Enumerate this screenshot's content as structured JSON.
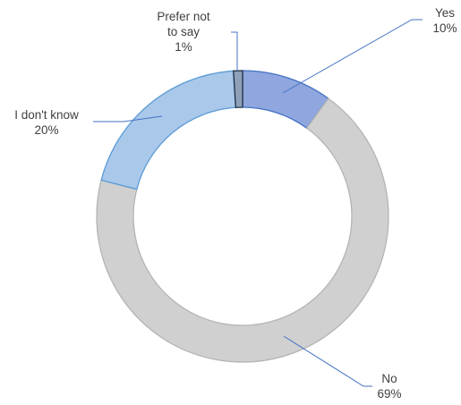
{
  "chart_data": {
    "type": "pie",
    "donut": true,
    "slices": [
      {
        "label": "Yes",
        "value": 10,
        "value_label": "10%",
        "color": "#8FA6DE",
        "stroke": "#4472C4"
      },
      {
        "label": "No",
        "value": 69,
        "value_label": "69%",
        "color": "#D0D0D0",
        "stroke": "#B4B4B4"
      },
      {
        "label": "I don't know",
        "value": 20,
        "value_label": "20%",
        "color": "#A9C8EA",
        "stroke": "#5B9BD5"
      },
      {
        "label": "Prefer not to say",
        "value": 1,
        "value_label": "1%",
        "color": "#8FA1B8",
        "stroke": "#1F2F46"
      }
    ],
    "labels": [
      {
        "lines": [
          "Yes",
          "10%"
        ]
      },
      {
        "lines": [
          "No",
          "69%"
        ]
      },
      {
        "lines": [
          "I don't know",
          "20%"
        ]
      },
      {
        "lines": [
          "Prefer not",
          "to say",
          "1%"
        ]
      }
    ],
    "leader_line_color": "#4472C4",
    "title": ""
  }
}
